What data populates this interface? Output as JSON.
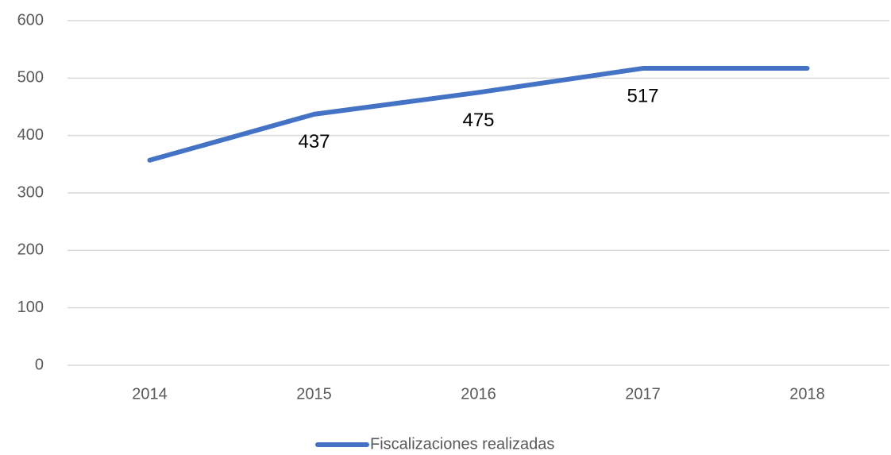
{
  "chart_data": {
    "type": "line",
    "categories": [
      "2014",
      "2015",
      "2016",
      "2017",
      "2018"
    ],
    "series": [
      {
        "name": "Fiscalizaciones realizadas",
        "color": "#4472c4",
        "values": [
          357,
          437,
          475,
          517,
          517
        ]
      }
    ],
    "show_labels": [
      false,
      true,
      true,
      true,
      false
    ],
    "ylim": [
      0,
      600
    ],
    "yticks": [
      0,
      100,
      200,
      300,
      400,
      500,
      600
    ],
    "grid": true,
    "legend": "bottom"
  }
}
